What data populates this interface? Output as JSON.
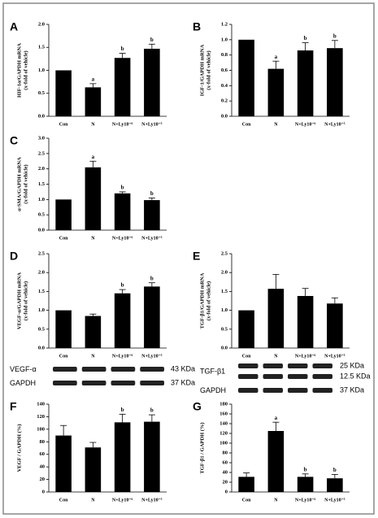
{
  "chart_data": [
    {
      "type": "bar",
      "panel_label": "A",
      "ylabel": [
        "HIF-1α/GAPDH mRNA",
        "(x-fold of vehicle)"
      ],
      "categories": [
        "Con",
        "N",
        "N+Ly10⁻⁶",
        "N+Ly10⁻⁵"
      ],
      "values": [
        1.0,
        0.63,
        1.27,
        1.47
      ],
      "errors": [
        0,
        0.08,
        0.1,
        0.1
      ],
      "annotations": [
        null,
        "a",
        "b",
        "b"
      ],
      "color": "#000000",
      "ylim": [
        0,
        2.0
      ],
      "yticks": [
        {
          "value": 0,
          "label": "0.0"
        },
        0.5,
        {
          "value": 1,
          "label": "1.0"
        },
        1.5,
        {
          "value": 2,
          "label": "2.0"
        }
      ]
    },
    {
      "type": "bar",
      "panel_label": "B",
      "ylabel": [
        "IGF-1/GAPDH mRNA",
        "(x-fold of vehicle)"
      ],
      "categories": [
        "Con",
        "N",
        "N+Ly10⁻⁶",
        "N+Ly10⁻⁵"
      ],
      "values": [
        1.0,
        0.62,
        0.86,
        0.89
      ],
      "errors": [
        0,
        0.1,
        0.1,
        0.1
      ],
      "annotations": [
        null,
        "a",
        "b",
        "b"
      ],
      "color": "#000000",
      "ylim": [
        0,
        1.2
      ],
      "yticks": [
        {
          "value": 0,
          "label": "0.0"
        },
        0.2,
        0.4,
        0.6,
        0.8,
        {
          "value": 1,
          "label": "1.0"
        },
        1.2
      ]
    },
    {
      "type": "bar",
      "panel_label": "C",
      "ylabel": [
        "α-SMA/GAPDH mRNA",
        "(x-fold of vehicle)"
      ],
      "categories": [
        "Con",
        "N",
        "N+Ly10⁻⁶",
        "N+Ly10⁻⁵"
      ],
      "values": [
        1.0,
        2.05,
        1.2,
        0.98
      ],
      "errors": [
        0,
        0.2,
        0.05,
        0.07
      ],
      "annotations": [
        null,
        "a",
        "b",
        "b"
      ],
      "color": "#000000",
      "ylim": [
        0,
        3.0
      ],
      "yticks": [
        {
          "value": 0,
          "label": "0.0"
        },
        0.5,
        {
          "value": 1,
          "label": "1.0"
        },
        1.5,
        {
          "value": 2,
          "label": "2.0"
        },
        2.5,
        {
          "value": 3,
          "label": "3.0"
        }
      ]
    },
    {
      "type": "bar",
      "panel_label": "D",
      "ylabel": [
        "VEGF-α/GAPDH mRNA",
        "(x-fold of vehicle)"
      ],
      "categories": [
        "Con",
        "N",
        "N+Ly10⁻⁶",
        "N+Ly10⁻⁵"
      ],
      "values": [
        1.0,
        0.85,
        1.45,
        1.63
      ],
      "errors": [
        0,
        0.05,
        0.1,
        0.1
      ],
      "annotations": [
        null,
        null,
        "b",
        "b"
      ],
      "color": "#000000",
      "ylim": [
        0,
        2.5
      ],
      "yticks": [
        {
          "value": 0,
          "label": "0.0"
        },
        0.5,
        {
          "value": 1,
          "label": "1.0"
        },
        1.5,
        {
          "value": 2,
          "label": "2.0"
        },
        2.5
      ]
    },
    {
      "type": "bar",
      "panel_label": "E",
      "ylabel": [
        "TGF-β1/GAPDH mRNA",
        "(x-fold of vehicle)"
      ],
      "categories": [
        "Con",
        "N",
        "N+Ly10⁻⁶",
        "N+Ly10⁻⁵"
      ],
      "values": [
        1.0,
        1.57,
        1.38,
        1.18
      ],
      "errors": [
        0,
        0.38,
        0.2,
        0.15
      ],
      "color": "#000000",
      "ylim": [
        0,
        2.5
      ],
      "yticks": [
        {
          "value": 0,
          "label": "0.0"
        },
        0.5,
        {
          "value": 1,
          "label": "1.0"
        },
        1.5,
        {
          "value": 2,
          "label": "2.0"
        },
        2.5
      ]
    },
    {
      "type": "bar",
      "panel_label": "F",
      "ylabel": [
        "VEGF / GAPDH (%)"
      ],
      "categories": [
        "Con",
        "N",
        "N+Ly10⁻⁶",
        "N+Ly10⁻⁵"
      ],
      "values": [
        90,
        71,
        111,
        112
      ],
      "errors": [
        16,
        8,
        13,
        11
      ],
      "annotations": [
        null,
        null,
        "b",
        "b"
      ],
      "color": "#000000",
      "ylim": [
        0,
        140
      ],
      "yticks": [
        0,
        20,
        40,
        60,
        80,
        100,
        120,
        140
      ]
    },
    {
      "type": "bar",
      "panel_label": "G",
      "ylabel": [
        "TGF-β1 / GAPDH (%)"
      ],
      "categories": [
        "Con",
        "N",
        "N+Ly10⁻⁶",
        "N+Ly10⁻⁵"
      ],
      "values": [
        31,
        125,
        31,
        28
      ],
      "errors": [
        8,
        18,
        6,
        8
      ],
      "annotations": [
        null,
        "a",
        "b",
        "b"
      ],
      "color": "#000000",
      "ylim": [
        0,
        180
      ],
      "yticks": [
        0,
        20,
        40,
        60,
        80,
        100,
        120,
        140,
        160,
        180
      ]
    }
  ],
  "blots": [
    {
      "rows": [
        {
          "label": "VEGF-α",
          "sizes": [
            "43 KDa"
          ]
        },
        {
          "label": "GAPDH",
          "sizes": [
            "37 KDa"
          ]
        }
      ]
    },
    {
      "rows": [
        {
          "label": "TGF-β1",
          "sizes": [
            "25 KDa",
            "12.5 KDa"
          ]
        },
        {
          "label": "GAPDH",
          "sizes": [
            "37 KDa"
          ]
        }
      ]
    }
  ]
}
